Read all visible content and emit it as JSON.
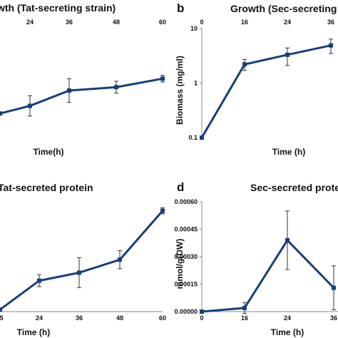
{
  "chart_data": [
    {
      "type": "line",
      "panel_label": "",
      "title": "wth (Tat-secreting strain)",
      "xlabel": "Time(h)",
      "ylabel": "",
      "x_axis_position": "top",
      "x_ticks": [
        24,
        36,
        48,
        60
      ],
      "x": [
        12,
        24,
        36,
        48,
        60
      ],
      "values": [
        1.0,
        1.45,
        2.35,
        2.55,
        3.05
      ],
      "err": [
        0,
        0.6,
        0.7,
        0.35,
        0.2
      ],
      "ylim": [
        0,
        6
      ]
    },
    {
      "type": "line",
      "panel_label": "b",
      "title": "Growth (Sec-secreting",
      "xlabel": "Time (h)",
      "ylabel": "Biomass (mg/ml)",
      "y_scale": "log",
      "x_axis_position": "top",
      "x_ticks": [
        0,
        16,
        24,
        36
      ],
      "y_ticks": [
        "10",
        "1",
        "0.1"
      ],
      "x": [
        0,
        16,
        24,
        36
      ],
      "values": [
        0.1,
        2.2,
        3.3,
        4.9
      ],
      "err_lo": [
        0,
        1.7,
        2.1,
        3.5
      ],
      "err_hi": [
        0,
        2.7,
        4.4,
        6.4
      ],
      "ylim": [
        0.1,
        10
      ]
    },
    {
      "type": "line",
      "panel_label": "",
      "title": "Tat-secreted protein",
      "xlabel": "Time (h)",
      "ylabel": "",
      "x_ticks": [
        "5",
        "24",
        "36",
        "48",
        "60"
      ],
      "x": [
        12,
        24,
        36,
        48,
        60
      ],
      "values": [
        0.1,
        1.55,
        1.95,
        2.6,
        5.05
      ],
      "err": [
        0,
        0.3,
        0.75,
        0.45,
        0.15
      ],
      "ylim": [
        0,
        5.5
      ]
    },
    {
      "type": "line",
      "panel_label": "d",
      "title": "Sec-secreted prote",
      "xlabel": "Time (h)",
      "ylabel": "mmol/g(DW)",
      "x_ticks": [
        0,
        16,
        24,
        36
      ],
      "y_ticks": [
        "0.00000",
        "0.00015",
        "0.00030",
        "0.00045",
        "0.00060"
      ],
      "x": [
        0,
        16,
        24,
        36
      ],
      "values": [
        0.0,
        2e-05,
        0.00039,
        0.00013
      ],
      "err": [
        0,
        3e-05,
        0.00016,
        0.00012
      ],
      "ylim": [
        0,
        0.0006
      ]
    }
  ],
  "colors": {
    "series": "#163f7a",
    "error_bar": "#333333"
  }
}
